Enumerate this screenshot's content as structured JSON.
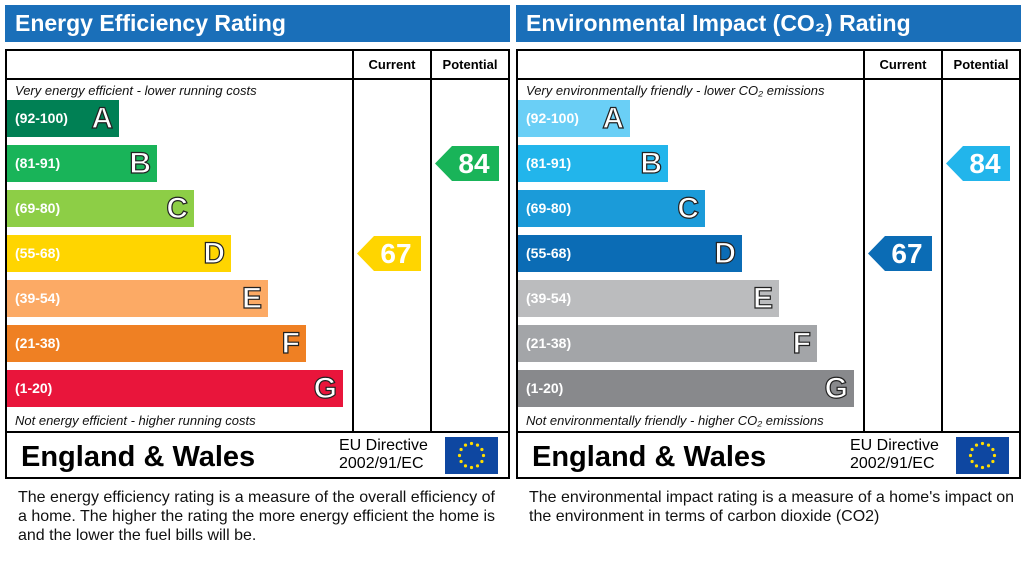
{
  "chart_data": [
    {
      "type": "bar",
      "title": "Energy Efficiency Rating",
      "column_headers": [
        "Current",
        "Potential"
      ],
      "top_note": "Very energy efficient - lower running costs",
      "bottom_note": "Not energy efficient - higher running costs",
      "bands": [
        {
          "letter": "A",
          "range": "(92-100)",
          "color": "#008054"
        },
        {
          "letter": "B",
          "range": "(81-91)",
          "color": "#19b459"
        },
        {
          "letter": "C",
          "range": "(69-80)",
          "color": "#8dce46"
        },
        {
          "letter": "D",
          "range": "(55-68)",
          "color": "#ffd500"
        },
        {
          "letter": "E",
          "range": "(39-54)",
          "color": "#fcaa65"
        },
        {
          "letter": "F",
          "range": "(21-38)",
          "color": "#ef8023"
        },
        {
          "letter": "G",
          "range": "(1-20)",
          "color": "#e9153b"
        }
      ],
      "current": {
        "value": "67",
        "band": "D",
        "color": "#ffd500"
      },
      "potential": {
        "value": "84",
        "band": "B",
        "color": "#19b459"
      },
      "region": "England & Wales",
      "directive": [
        "EU Directive",
        "2002/91/EC"
      ],
      "description": "The energy efficiency rating is a measure of the overall efficiency of a home.  The higher the rating the more energy efficient the home is and the lower the fuel bills will be."
    },
    {
      "type": "bar",
      "title": "Environmental Impact (CO₂) Rating",
      "column_headers": [
        "Current",
        "Potential"
      ],
      "top_note": "Very environmentally friendly - lower CO₂ emissions",
      "bottom_note": "Not environmentally friendly - higher CO₂ emissions",
      "bands": [
        {
          "letter": "A",
          "range": "(92-100)",
          "color": "#6acff6"
        },
        {
          "letter": "B",
          "range": "(81-91)",
          "color": "#22b5eb"
        },
        {
          "letter": "C",
          "range": "(69-80)",
          "color": "#1b9bd9"
        },
        {
          "letter": "D",
          "range": "(55-68)",
          "color": "#0b6cb5"
        },
        {
          "letter": "E",
          "range": "(39-54)",
          "color": "#bbbcbe"
        },
        {
          "letter": "F",
          "range": "(21-38)",
          "color": "#a3a5a8"
        },
        {
          "letter": "G",
          "range": "(1-20)",
          "color": "#88898c"
        }
      ],
      "current": {
        "value": "67",
        "band": "D",
        "color": "#0b6cb5"
      },
      "potential": {
        "value": "84",
        "band": "B",
        "color": "#22b5eb"
      },
      "region": "England & Wales",
      "directive": [
        "EU Directive",
        "2002/91/EC"
      ],
      "description": "The environmental impact rating is a measure of a home's impact on the environment in terms of carbon dioxide (CO2)"
    }
  ]
}
